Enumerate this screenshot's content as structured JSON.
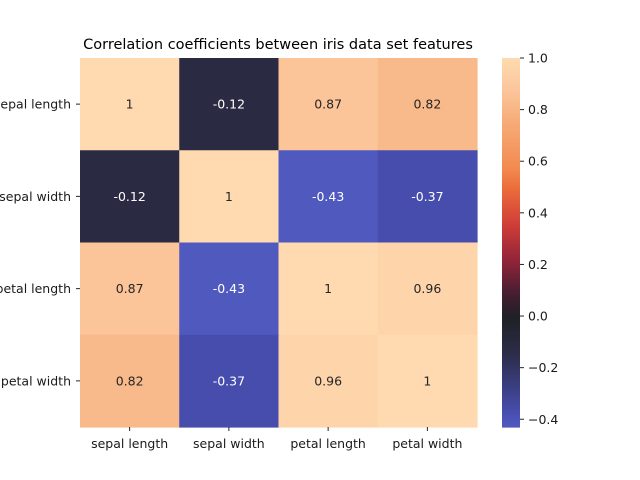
{
  "chart_data": {
    "type": "heatmap",
    "title": "Correlation coefficients between iris data set features",
    "row_labels": [
      "sepal length",
      "sepal width",
      "petal length",
      "petal width"
    ],
    "col_labels": [
      "sepal length",
      "sepal width",
      "petal length",
      "petal width"
    ],
    "values": [
      [
        1,
        -0.12,
        0.87,
        0.82
      ],
      [
        -0.12,
        1,
        -0.43,
        -0.37
      ],
      [
        0.87,
        -0.43,
        1,
        0.96
      ],
      [
        0.82,
        -0.37,
        0.96,
        1
      ]
    ],
    "cell_labels": [
      [
        "1",
        "-0.12",
        "0.87",
        "0.82"
      ],
      [
        "-0.12",
        "1",
        "-0.43",
        "-0.37"
      ],
      [
        "0.87",
        "-0.43",
        "1",
        "0.96"
      ],
      [
        "0.82",
        "-0.37",
        "0.96",
        "1"
      ]
    ],
    "colorbar": {
      "range": [
        -0.43,
        1.0
      ],
      "ticks": [
        -0.4,
        -0.2,
        0.0,
        0.2,
        0.4,
        0.6,
        0.8,
        1.0
      ],
      "tick_labels": [
        "−0.4",
        "−0.2",
        "0.0",
        "0.2",
        "0.4",
        "0.6",
        "0.8",
        "1.0"
      ]
    },
    "colormap": "icefire",
    "grid": false,
    "legend": "colorbar-right"
  }
}
